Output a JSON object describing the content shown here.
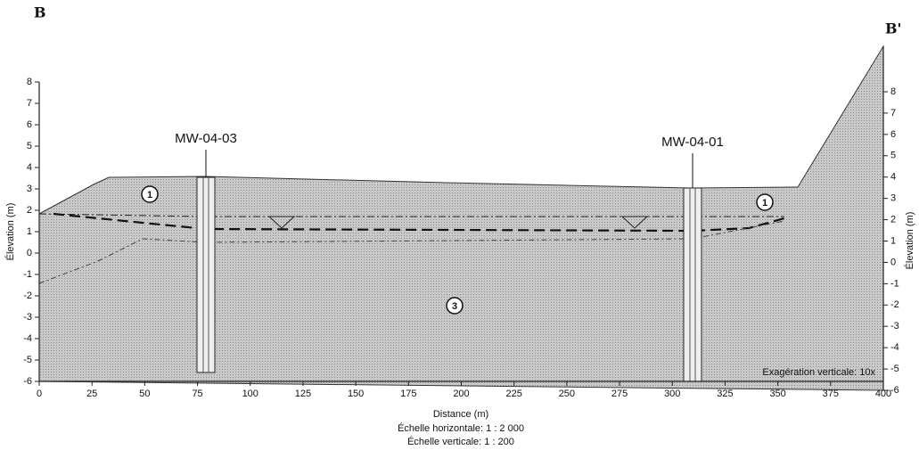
{
  "section": {
    "start_label": "B",
    "end_label": "B'"
  },
  "axes": {
    "x_title": "Distance (m)",
    "x_ticks": [
      "0",
      "25",
      "50",
      "75",
      "100",
      "125",
      "150",
      "175",
      "200",
      "225",
      "250",
      "275",
      "300",
      "325",
      "350",
      "375",
      "400"
    ],
    "y_title_left": "Élevation (m)",
    "y_ticks_left": [
      "8",
      "7",
      "6",
      "5",
      "4",
      "3",
      "2",
      "1",
      "0",
      "-1",
      "-2",
      "-3",
      "-4",
      "-5",
      "-6"
    ],
    "y_title_right": "Élevation (m)",
    "y_ticks_right": [
      "8",
      "7",
      "6",
      "5",
      "4",
      "3",
      "2",
      "1",
      "0",
      "-1",
      "-2",
      "-3",
      "-4",
      "-5",
      "-6"
    ]
  },
  "wells": [
    {
      "label": "MW-04-03"
    },
    {
      "label": "MW-04-01"
    }
  ],
  "units": [
    "1",
    "1",
    "3"
  ],
  "scales": {
    "horizontal": "Échelle horizontale: 1 : 2 000",
    "vertical": "Échelle verticale: 1 : 200"
  },
  "note": "Exagération verticale: 10x"
}
